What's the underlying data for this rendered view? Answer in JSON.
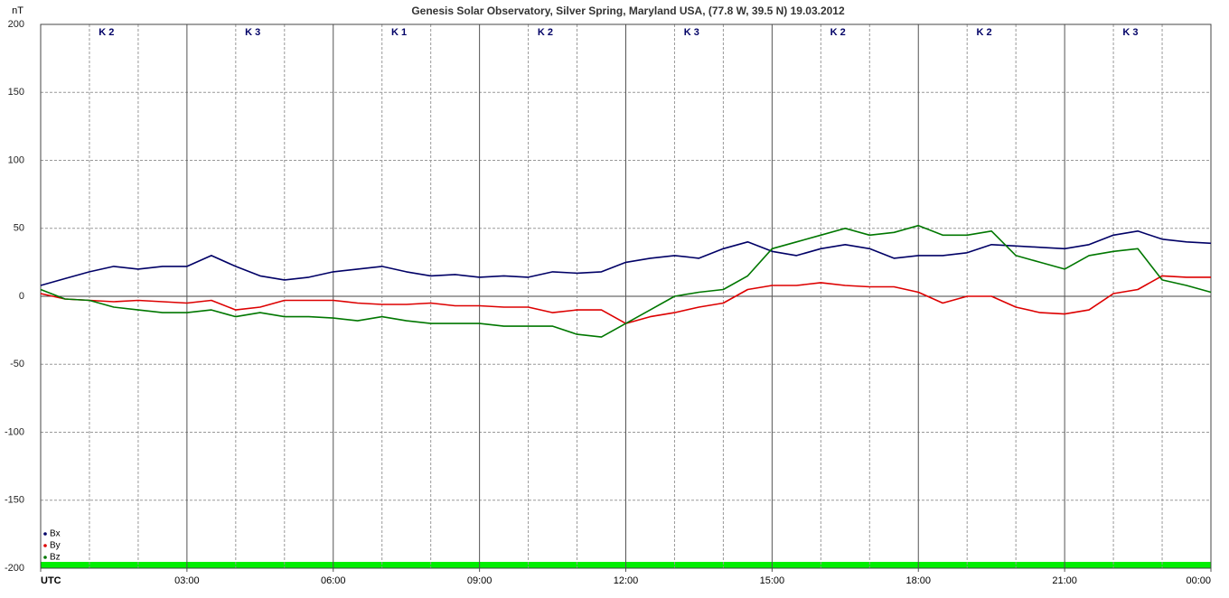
{
  "chart_data": {
    "type": "line",
    "title": "Genesis Solar Observatory, Silver Spring, Maryland USA, (77.8 W, 39.5 N)  19.03.2012",
    "y_label": "nT",
    "x": [
      0,
      0.5,
      1,
      1.5,
      2,
      2.5,
      3,
      3.5,
      4,
      4.5,
      5,
      5.5,
      6,
      6.5,
      7,
      7.5,
      8,
      8.5,
      9,
      9.5,
      10,
      10.5,
      11,
      11.5,
      12,
      12.5,
      13,
      13.5,
      14,
      14.5,
      15,
      15.5,
      16,
      16.5,
      17,
      17.5,
      18,
      18.5,
      19,
      19.5,
      20,
      20.5,
      21,
      21.5,
      22,
      22.5,
      23,
      23.5,
      24
    ],
    "series": [
      {
        "name": "Bx",
        "color": "#000066",
        "values": [
          8,
          13,
          18,
          22,
          20,
          22,
          22,
          30,
          22,
          15,
          12,
          14,
          18,
          20,
          22,
          18,
          15,
          16,
          14,
          15,
          14,
          18,
          17,
          18,
          25,
          28,
          30,
          28,
          35,
          40,
          33,
          30,
          35,
          38,
          35,
          28,
          30,
          30,
          32,
          38,
          37,
          36,
          35,
          38,
          45,
          48,
          42,
          40,
          39
        ]
      },
      {
        "name": "By",
        "color": "#dd0000",
        "values": [
          2,
          -2,
          -3,
          -4,
          -3,
          -4,
          -5,
          -3,
          -10,
          -8,
          -3,
          -3,
          -3,
          -5,
          -6,
          -6,
          -5,
          -7,
          -7,
          -8,
          -8,
          -12,
          -10,
          -10,
          -20,
          -15,
          -12,
          -8,
          -5,
          5,
          8,
          8,
          10,
          8,
          7,
          7,
          3,
          -5,
          0,
          0,
          -8,
          -12,
          -13,
          -10,
          2,
          5,
          15,
          14,
          14
        ]
      },
      {
        "name": "Bz",
        "color": "#007700",
        "values": [
          5,
          -2,
          -3,
          -8,
          -10,
          -12,
          -12,
          -10,
          -15,
          -12,
          -15,
          -15,
          -16,
          -18,
          -15,
          -18,
          -20,
          -20,
          -20,
          -22,
          -22,
          -22,
          -28,
          -30,
          -20,
          -10,
          0,
          3,
          5,
          15,
          35,
          40,
          45,
          50,
          45,
          47,
          52,
          45,
          45,
          48,
          30,
          25,
          20,
          30,
          33,
          35,
          12,
          8,
          3
        ]
      }
    ],
    "xlim": [
      0,
      24
    ],
    "xticks": [
      {
        "value": 0,
        "label": "UTC"
      },
      {
        "value": 3,
        "label": "03:00"
      },
      {
        "value": 6,
        "label": "06:00"
      },
      {
        "value": 9,
        "label": "09:00"
      },
      {
        "value": 12,
        "label": "12:00"
      },
      {
        "value": 15,
        "label": "15:00"
      },
      {
        "value": 18,
        "label": "18:00"
      },
      {
        "value": 21,
        "label": "21:00"
      },
      {
        "value": 24,
        "label": "00:00"
      }
    ],
    "x_minor_ticks": [
      1,
      2,
      4,
      5,
      7,
      8,
      10,
      11,
      13,
      14,
      16,
      17,
      19,
      20,
      22,
      23
    ],
    "ylim": [
      -200,
      200
    ],
    "yticks": [
      -200,
      -150,
      -100,
      -50,
      0,
      50,
      100,
      150,
      200
    ],
    "grid": true,
    "k_index": [
      "K 2",
      "K 3",
      "K 1",
      "K 2",
      "K 3",
      "K 2",
      "K 2",
      "K 3"
    ],
    "legend": "lower left"
  }
}
